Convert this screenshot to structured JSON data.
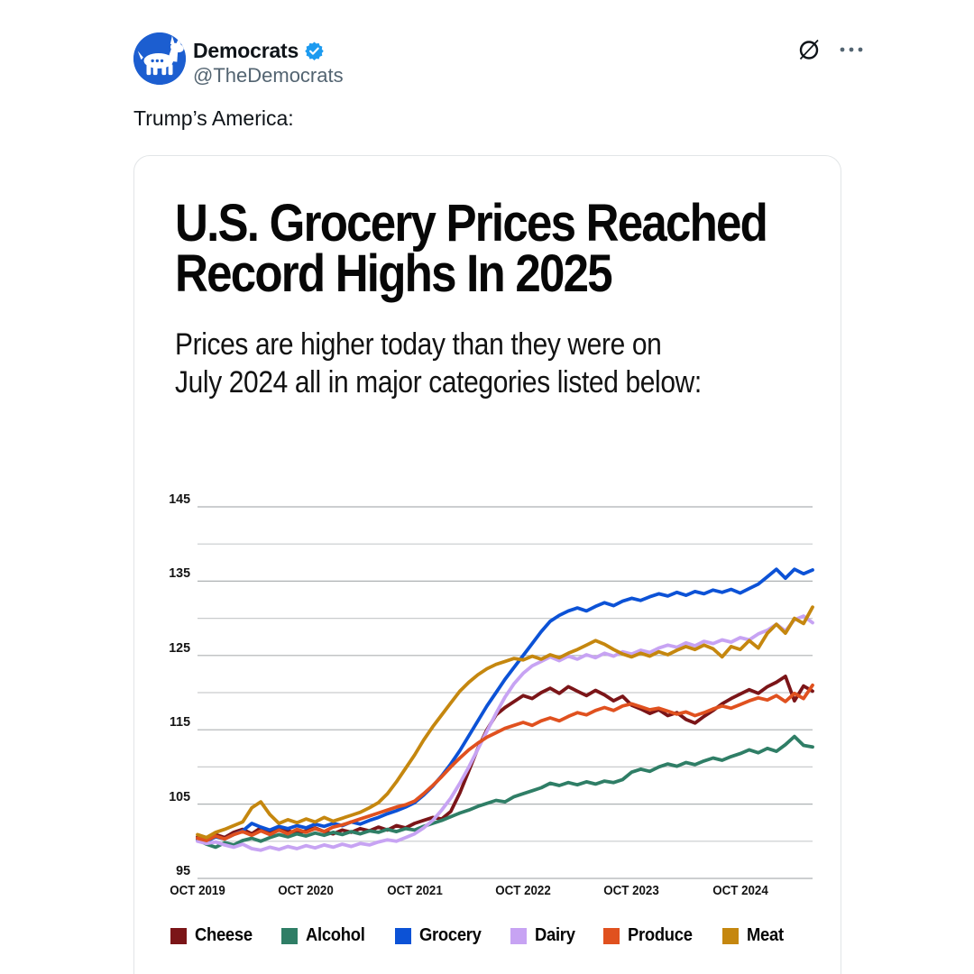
{
  "header": {
    "display_name": "Democrats",
    "handle": "@TheDemocrats",
    "verified": true
  },
  "tweet": {
    "text": "Trump’s America:"
  },
  "icons": {
    "avatar": "democrats-donkey-icon",
    "badge": "verified-badge-icon",
    "grok": "grok-icon",
    "more": "more-options-icon"
  },
  "colors": {
    "verified_blue": "#1d9bf0",
    "avatar_blue": "#1c5ed0",
    "text_primary": "#0f1419",
    "text_secondary": "#536471",
    "card_border": "#e2e5e7",
    "gridline_major": "#adb1b3",
    "gridline_minor": "#c9cccd"
  },
  "chart_data": {
    "type": "line",
    "title": "U.S. Grocery Prices Reached Record Highs In 2025",
    "title_lines": [
      "U.S. Grocery Prices Reached",
      "Record Highs In 2025"
    ],
    "subtitle": "Prices are higher today than they were on July 2024 all in major categories listed below:",
    "subtitle_lines": [
      "Prices are higher today than they were on",
      "July 2024 all in major categories listed below:"
    ],
    "x_unit": "month",
    "x_start": "Oct 2019",
    "x_end": "Jun 2025",
    "xticks": [
      "OCT 2019",
      "OCT 2020",
      "OCT 2021",
      "OCT 2022",
      "OCT 2023",
      "OCT 2024"
    ],
    "months_per_xtick": 12,
    "ylim": [
      95,
      145
    ],
    "yticks": [
      145,
      135,
      125,
      115,
      105,
      95
    ],
    "grid_step": 5,
    "grid": true,
    "legend_position": "bottom",
    "series": [
      {
        "name": "Cheese",
        "color": "#7b1518",
        "values": [
          100.6,
          100.2,
          100.9,
          100.5,
          101.2,
          101.6,
          101.0,
          101.8,
          101.3,
          101.9,
          101.4,
          101.1,
          101.4,
          101.8,
          101.3,
          101.0,
          101.5,
          101.2,
          101.7,
          101.4,
          101.9,
          101.5,
          102.1,
          101.8,
          102.4,
          102.8,
          103.2,
          103.0,
          104.0,
          106.5,
          109.5,
          112.5,
          115.0,
          117.0,
          118.0,
          118.8,
          119.6,
          119.2,
          120.0,
          120.6,
          119.9,
          120.8,
          120.2,
          119.6,
          120.3,
          119.7,
          118.9,
          119.5,
          118.3,
          117.8,
          117.2,
          117.7,
          116.9,
          117.3,
          116.4,
          115.9,
          116.8,
          117.6,
          118.5,
          119.2,
          119.8,
          120.4,
          119.9,
          120.8,
          121.4,
          122.2,
          118.9,
          120.9,
          120.2
        ]
      },
      {
        "name": "Alcohol",
        "color": "#2f7e66",
        "values": [
          100.2,
          99.6,
          99.2,
          99.8,
          99.5,
          100.1,
          100.4,
          100.0,
          100.5,
          100.9,
          100.6,
          101.0,
          100.7,
          101.1,
          100.8,
          101.2,
          100.9,
          101.3,
          101.0,
          101.4,
          101.2,
          101.6,
          101.3,
          101.7,
          101.5,
          102.0,
          102.4,
          102.8,
          103.3,
          103.8,
          104.2,
          104.7,
          105.1,
          105.5,
          105.3,
          106.0,
          106.4,
          106.8,
          107.2,
          107.8,
          107.5,
          107.9,
          107.6,
          108.0,
          107.7,
          108.1,
          107.9,
          108.3,
          109.3,
          109.7,
          109.4,
          110.0,
          110.4,
          110.1,
          110.6,
          110.3,
          110.8,
          111.2,
          110.9,
          111.4,
          111.8,
          112.3,
          111.9,
          112.5,
          112.1,
          113.0,
          114.1,
          112.9,
          112.7
        ]
      },
      {
        "name": "Grocery",
        "color": "#0c52d6",
        "values": [
          100.3,
          100.0,
          100.6,
          100.3,
          100.9,
          101.4,
          102.4,
          101.9,
          101.5,
          102.0,
          101.7,
          102.1,
          101.8,
          102.3,
          102.0,
          102.4,
          102.1,
          102.6,
          102.3,
          102.8,
          103.2,
          103.7,
          104.1,
          104.6,
          105.2,
          106.2,
          107.4,
          108.8,
          110.4,
          112.2,
          114.2,
          116.2,
          118.2,
          120.0,
          121.8,
          123.4,
          125.0,
          126.6,
          128.2,
          129.6,
          130.4,
          131.0,
          131.4,
          131.0,
          131.6,
          132.1,
          131.7,
          132.3,
          132.7,
          132.4,
          132.9,
          133.3,
          133.0,
          133.5,
          133.1,
          133.6,
          133.3,
          133.8,
          133.5,
          133.9,
          133.4,
          134.0,
          134.6,
          135.6,
          136.6,
          135.4,
          136.6,
          136.0,
          136.5
        ]
      },
      {
        "name": "Dairy",
        "color": "#c7a3f3",
        "values": [
          100.0,
          99.7,
          99.9,
          99.5,
          99.2,
          99.6,
          99.0,
          98.8,
          99.2,
          98.9,
          99.3,
          99.0,
          99.4,
          99.1,
          99.5,
          99.2,
          99.6,
          99.3,
          99.7,
          99.5,
          99.9,
          100.2,
          100.0,
          100.5,
          101.0,
          101.8,
          102.8,
          104.2,
          105.8,
          107.8,
          110.0,
          112.4,
          114.8,
          117.2,
          119.4,
          121.2,
          122.6,
          123.6,
          124.2,
          124.8,
          124.3,
          124.9,
          124.5,
          125.1,
          124.7,
          125.3,
          124.9,
          125.5,
          125.2,
          125.7,
          125.4,
          126.0,
          126.4,
          126.1,
          126.7,
          126.3,
          126.9,
          126.6,
          127.1,
          126.8,
          127.4,
          127.1,
          127.9,
          128.4,
          129.2,
          128.3,
          129.8,
          130.3,
          129.4
        ]
      },
      {
        "name": "Produce",
        "color": "#e0511f",
        "values": [
          100.4,
          100.1,
          100.7,
          100.3,
          100.9,
          101.3,
          100.8,
          101.4,
          100.9,
          101.5,
          101.0,
          101.6,
          101.2,
          101.7,
          101.3,
          101.9,
          102.2,
          102.6,
          103.0,
          103.4,
          103.8,
          104.2,
          104.6,
          104.9,
          105.4,
          106.4,
          107.5,
          108.7,
          110.0,
          111.2,
          112.3,
          113.2,
          114.0,
          114.6,
          115.2,
          115.6,
          116.0,
          115.6,
          116.2,
          116.6,
          116.2,
          116.8,
          117.3,
          117.0,
          117.6,
          118.0,
          117.6,
          118.2,
          118.5,
          118.1,
          117.7,
          117.9,
          117.5,
          117.1,
          117.4,
          116.9,
          117.3,
          117.8,
          118.2,
          117.9,
          118.4,
          118.9,
          119.3,
          119.0,
          119.6,
          118.8,
          119.9,
          119.2,
          121.0
        ]
      },
      {
        "name": "Meat",
        "color": "#c5870f",
        "values": [
          100.9,
          100.5,
          101.2,
          101.6,
          102.1,
          102.6,
          104.5,
          105.3,
          103.6,
          102.4,
          102.9,
          102.5,
          103.0,
          102.6,
          103.2,
          102.7,
          103.1,
          103.5,
          103.9,
          104.5,
          105.2,
          106.4,
          108.0,
          109.8,
          111.6,
          113.6,
          115.4,
          117.0,
          118.6,
          120.2,
          121.4,
          122.4,
          123.2,
          123.8,
          124.2,
          124.6,
          124.4,
          124.9,
          124.5,
          125.1,
          124.7,
          125.3,
          125.8,
          126.4,
          127.0,
          126.5,
          125.8,
          125.2,
          124.8,
          125.3,
          124.9,
          125.5,
          125.1,
          125.7,
          126.2,
          125.8,
          126.4,
          125.9,
          124.8,
          126.2,
          125.8,
          127.0,
          126.0,
          128.0,
          129.2,
          128.0,
          130.0,
          129.3,
          131.5
        ]
      }
    ]
  }
}
